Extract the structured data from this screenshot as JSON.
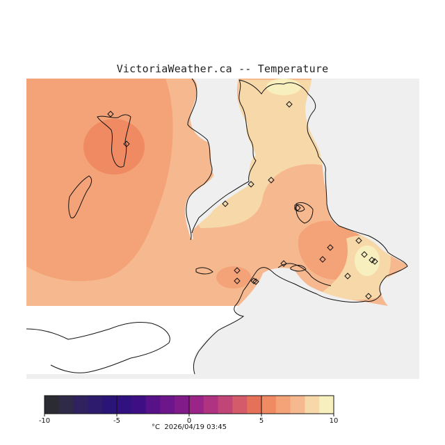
{
  "title": "VictoriaWeather.ca -- Temperature",
  "colors": {
    "ocean": "#efefef",
    "land_unmapped": "#ffffff",
    "coast": "#111111",
    "temp_6_7": "#f08a62",
    "temp_7_8": "#f4a378",
    "temp_8_9": "#f6b88f",
    "temp_9_10": "#f7d8a8",
    "temp_10_plus": "#f8efbf"
  },
  "legend": {
    "min": -10,
    "max": 10,
    "tick_labels": [
      "-10",
      "-5",
      "0",
      "5",
      "10"
    ],
    "tick_values": [
      -10,
      -5,
      0,
      5,
      10
    ],
    "colors": [
      "#2b2b34",
      "#2f2a48",
      "#2f225f",
      "#2d1b6e",
      "#2a1478",
      "#31107f",
      "#3e0f84",
      "#571189",
      "#6d158a",
      "#821b8a",
      "#9a2487",
      "#b03381",
      "#c24577",
      "#d45b6a",
      "#e47158",
      "#f08a62",
      "#f4a378",
      "#f6b88f",
      "#f7d8a8",
      "#f8efbf"
    ],
    "unit": "°C",
    "timestamp": "2026/04/19 03:45"
  },
  "stations": {
    "count": 20,
    "marker": "diamond-icon"
  }
}
